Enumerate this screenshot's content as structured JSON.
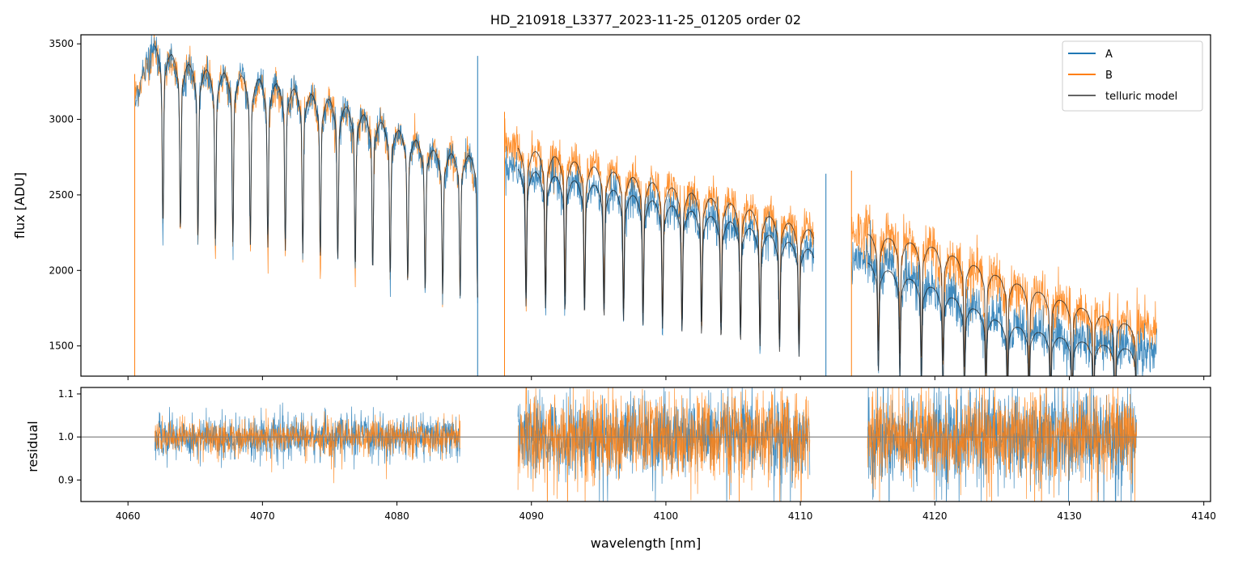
{
  "chart_data": {
    "type": "line",
    "title": "HD_210918_L3377_2023-11-25_01205  order 02",
    "xlabel": "wavelength [nm]",
    "xlim": [
      4056.5,
      4140.5
    ],
    "xticks": [
      4060,
      4070,
      4080,
      4090,
      4100,
      4110,
      4120,
      4130,
      4140
    ],
    "xtick_labels": [
      "4060",
      "4070",
      "4080",
      "4090",
      "4100",
      "4110",
      "4120",
      "4130",
      "4140"
    ],
    "colors": {
      "A": "#1f77b4",
      "B": "#ff7f0e",
      "model": "#222222",
      "reference": "#808080"
    },
    "legend": {
      "position": "top-right",
      "entries": [
        "A",
        "B",
        "telluric model"
      ]
    },
    "panels": [
      {
        "name": "flux",
        "ylabel": "flux [ADU]",
        "ylim": [
          1300,
          3560
        ],
        "yticks": [
          1500,
          2000,
          2500,
          3000,
          3500
        ],
        "ytick_labels": [
          "1500",
          "2000",
          "2500",
          "3000",
          "3500"
        ],
        "segments": [
          {
            "x_range": [
              4060.5,
              4086.0
            ],
            "continuum_A": [
              [
                4060.5,
                3150
              ],
              [
                4062,
                3480
              ],
              [
                4065,
                3330
              ],
              [
                4070,
                3250
              ],
              [
                4075,
                3120
              ],
              [
                4080,
                2930
              ],
              [
                4083,
                2780
              ],
              [
                4086,
                2750
              ]
            ],
            "continuum_B": [
              [
                4060.5,
                3150
              ],
              [
                4062,
                3480
              ],
              [
                4065,
                3330
              ],
              [
                4070,
                3250
              ],
              [
                4075,
                3120
              ],
              [
                4080,
                2930
              ],
              [
                4083,
                2780
              ],
              [
                4086,
                2750
              ]
            ],
            "noise_A": 55,
            "noise_B": 60
          },
          {
            "x_range": [
              4088.0,
              4111.0
            ],
            "continuum_A": [
              [
                4088,
                2700
              ],
              [
                4095,
                2550
              ],
              [
                4100,
                2440
              ],
              [
                4105,
                2320
              ],
              [
                4111,
                2150
              ]
            ],
            "continuum_B": [
              [
                4088,
                2850
              ],
              [
                4095,
                2700
              ],
              [
                4100,
                2580
              ],
              [
                4105,
                2450
              ],
              [
                4111,
                2280
              ]
            ],
            "noise_A": 60,
            "noise_B": 65
          },
          {
            "x_range": [
              4113.8,
              4136.5
            ],
            "continuum_A": [
              [
                4113.8,
                2080
              ],
              [
                4117,
                2020
              ],
              [
                4120,
                1880
              ],
              [
                4125,
                1680
              ],
              [
                4130,
                1560
              ],
              [
                4135,
                1500
              ],
              [
                4136.5,
                1460
              ]
            ],
            "continuum_B": [
              [
                4113.8,
                2260
              ],
              [
                4117,
                2230
              ],
              [
                4120,
                2130
              ],
              [
                4125,
                1930
              ],
              [
                4130,
                1760
              ],
              [
                4135,
                1620
              ],
              [
                4136.5,
                1590
              ]
            ],
            "noise_A": 80,
            "noise_B": 90
          }
        ],
        "model_lines": [
          {
            "x_range": [
              4062.0,
              4086.0
            ],
            "line_spacing_nm": 1.3,
            "first_line_nm": 4063.9,
            "points": [
              [
                4062,
                3500
              ],
              [
                4065,
                3350
              ],
              [
                4070,
                3270
              ],
              [
                4075,
                3140
              ],
              [
                4080,
                2940
              ],
              [
                4083,
                2790
              ],
              [
                4086,
                2760
              ]
            ]
          },
          {
            "x_range": [
              4089.0,
              4111.0
            ],
            "line_spacing_nm": 1.45,
            "first_line_nm": 4089.6,
            "points": [
              [
                4089,
                2820
              ],
              [
                4095,
                2680
              ],
              [
                4100,
                2560
              ],
              [
                4105,
                2440
              ],
              [
                4111,
                2260
              ]
            ]
          },
          {
            "x_range": [
              4089.0,
              4111.0
            ],
            "line_spacing_nm": 1.45,
            "first_line_nm": 4089.6,
            "points": [
              [
                4089,
                2680
              ],
              [
                4095,
                2560
              ],
              [
                4100,
                2440
              ],
              [
                4105,
                2320
              ],
              [
                4111,
                2130
              ]
            ]
          },
          {
            "x_range": [
              4115.0,
              4135.0
            ],
            "line_spacing_nm": 1.6,
            "first_line_nm": 4115.8,
            "points": [
              [
                4115,
                2240
              ],
              [
                4120,
                2150
              ],
              [
                4125,
                1950
              ],
              [
                4130,
                1780
              ],
              [
                4135,
                1620
              ]
            ]
          },
          {
            "x_range": [
              4115.0,
              4135.0
            ],
            "line_spacing_nm": 1.6,
            "first_line_nm": 4115.8,
            "points": [
              [
                4115,
                2050
              ],
              [
                4120,
                1880
              ],
              [
                4125,
                1650
              ],
              [
                4130,
                1540
              ],
              [
                4135,
                1470
              ]
            ]
          }
        ]
      },
      {
        "name": "residual",
        "ylabel": "residual",
        "ylim": [
          0.85,
          1.115
        ],
        "yticks": [
          0.9,
          1.0,
          1.1
        ],
        "ytick_labels": [
          "0.9",
          "1.0",
          "1.1"
        ],
        "reference_line": 1.0,
        "segments": [
          {
            "x_range": [
              4062.0,
              4084.7
            ],
            "scatter_A": 0.025,
            "scatter_B": 0.02
          },
          {
            "x_range": [
              4089.0,
              4110.7
            ],
            "scatter_A": 0.045,
            "scatter_B": 0.05
          },
          {
            "x_range": [
              4115.0,
              4135.0
            ],
            "scatter_A": 0.055,
            "scatter_B": 0.05
          }
        ]
      }
    ]
  }
}
